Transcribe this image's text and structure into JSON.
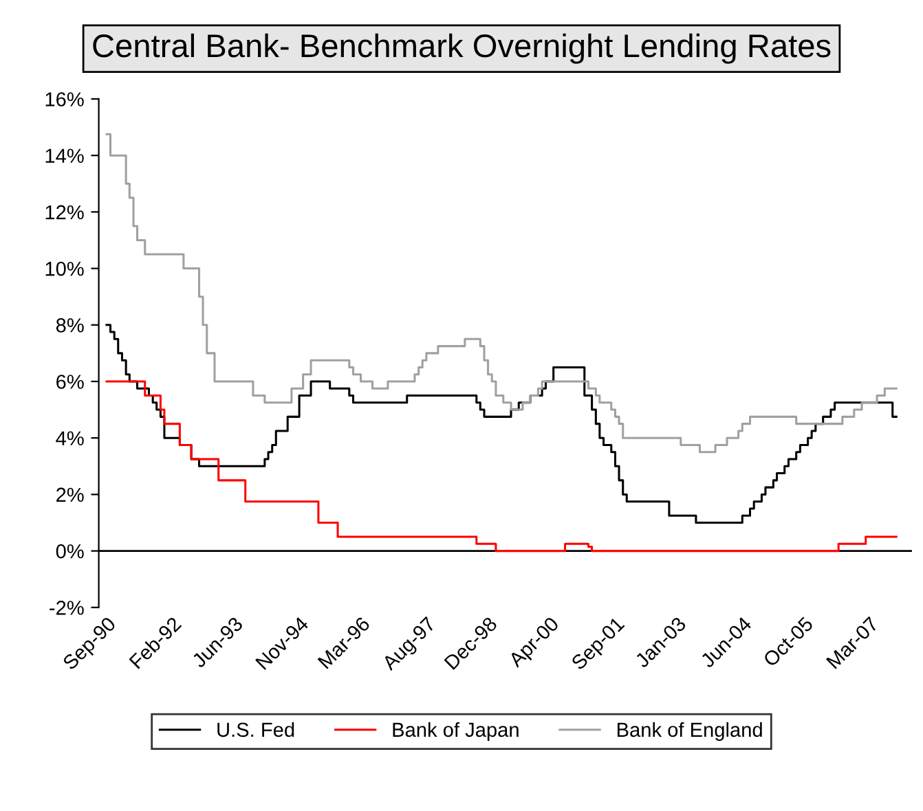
{
  "chart_data": {
    "type": "step",
    "title": "Central Bank- Benchmark Overnight Lending Rates",
    "series": [
      {
        "name": "U.S. Fed",
        "color": "#000000",
        "x": [
          "1990-09",
          "1990-10",
          "1990-11",
          "1990-12",
          "1991-01",
          "1991-02",
          "1991-03",
          "1991-05",
          "1991-08",
          "1991-09",
          "1991-10",
          "1991-11",
          "1991-12",
          "1992-04",
          "1992-07",
          "1992-09",
          "1994-02",
          "1994-03",
          "1994-04",
          "1994-05",
          "1994-08",
          "1994-11",
          "1995-02",
          "1995-07",
          "1995-12",
          "1996-01",
          "1997-03",
          "1998-09",
          "1998-10",
          "1998-11",
          "1999-06",
          "1999-08",
          "1999-11",
          "2000-02",
          "2000-03",
          "2000-05",
          "2001-01",
          "2001-03",
          "2001-04",
          "2001-05",
          "2001-06",
          "2001-08",
          "2001-09",
          "2001-10",
          "2001-11",
          "2001-12",
          "2002-11",
          "2003-06",
          "2004-06",
          "2004-08",
          "2004-09",
          "2004-11",
          "2004-12",
          "2005-02",
          "2005-03",
          "2005-05",
          "2005-06",
          "2005-08",
          "2005-09",
          "2005-11",
          "2005-12",
          "2006-01",
          "2006-03",
          "2006-05",
          "2006-06",
          "2007-09",
          "2007-10"
        ],
        "values": [
          8.0,
          7.75,
          7.5,
          7.0,
          6.75,
          6.25,
          6.0,
          5.75,
          5.5,
          5.25,
          5.0,
          4.75,
          4.0,
          3.75,
          3.25,
          3.0,
          3.25,
          3.5,
          3.75,
          4.25,
          4.75,
          5.5,
          6.0,
          5.75,
          5.5,
          5.25,
          5.5,
          5.25,
          5.0,
          4.75,
          5.0,
          5.25,
          5.5,
          5.75,
          6.0,
          6.5,
          5.5,
          5.0,
          4.5,
          4.0,
          3.75,
          3.5,
          3.0,
          2.5,
          2.0,
          1.75,
          1.25,
          1.0,
          1.25,
          1.5,
          1.75,
          2.0,
          2.25,
          2.5,
          2.75,
          3.0,
          3.25,
          3.5,
          3.75,
          4.0,
          4.25,
          4.5,
          4.75,
          5.0,
          5.25,
          4.75,
          4.75
        ]
      },
      {
        "name": "Bank of Japan",
        "color": "#ff0000",
        "x": [
          "1990-09",
          "1991-07",
          "1991-11",
          "1991-12",
          "1992-04",
          "1992-07",
          "1993-02",
          "1993-09",
          "1995-04",
          "1995-09",
          "1998-09",
          "1999-02",
          "2000-08",
          "2001-02",
          "2001-03",
          "2006-07",
          "2007-02",
          "2007-10"
        ],
        "values": [
          6.0,
          5.5,
          5.0,
          4.5,
          3.75,
          3.25,
          2.5,
          1.75,
          1.0,
          0.5,
          0.25,
          0.0,
          0.25,
          0.15,
          0.0,
          0.25,
          0.5,
          0.5
        ]
      },
      {
        "name": "Bank of England",
        "color": "#a0a0a0",
        "x": [
          "1990-09",
          "1990-10",
          "1991-02",
          "1991-03",
          "1991-04",
          "1991-05",
          "1991-07",
          "1992-05",
          "1992-09",
          "1992-10",
          "1992-11",
          "1993-01",
          "1993-11",
          "1994-02",
          "1994-09",
          "1994-12",
          "1995-02",
          "1995-12",
          "1996-01",
          "1996-03",
          "1996-06",
          "1996-10",
          "1997-05",
          "1997-06",
          "1997-07",
          "1997-08",
          "1997-11",
          "1998-06",
          "1998-10",
          "1998-11",
          "1998-12",
          "1999-01",
          "1999-02",
          "1999-04",
          "1999-06",
          "1999-09",
          "1999-11",
          "2000-01",
          "2000-02",
          "2001-02",
          "2001-04",
          "2001-05",
          "2001-08",
          "2001-09",
          "2001-10",
          "2001-11",
          "2003-02",
          "2003-07",
          "2003-11",
          "2004-02",
          "2004-05",
          "2004-06",
          "2004-08",
          "2005-08",
          "2006-08",
          "2006-11",
          "2007-01",
          "2007-05",
          "2007-07",
          "2007-10"
        ],
        "values": [
          14.75,
          14.0,
          13.0,
          12.5,
          11.5,
          11.0,
          10.5,
          10.0,
          9.0,
          8.0,
          7.0,
          6.0,
          5.5,
          5.25,
          5.75,
          6.25,
          6.75,
          6.5,
          6.25,
          6.0,
          5.75,
          6.0,
          6.25,
          6.5,
          6.75,
          7.0,
          7.25,
          7.5,
          7.25,
          6.75,
          6.25,
          6.0,
          5.5,
          5.25,
          5.0,
          5.25,
          5.5,
          5.75,
          6.0,
          5.75,
          5.5,
          5.25,
          5.0,
          4.75,
          4.5,
          4.0,
          3.75,
          3.5,
          3.75,
          4.0,
          4.25,
          4.5,
          4.75,
          4.5,
          4.75,
          5.0,
          5.25,
          5.5,
          5.75,
          5.75
        ]
      }
    ],
    "xlim": [
      "1990-07",
      "2008-02"
    ],
    "xticks": [
      {
        "value": "1990-09",
        "label": "Sep-90"
      },
      {
        "value": "1992-02",
        "label": "Feb-92"
      },
      {
        "value": "1993-06",
        "label": "Jun-93"
      },
      {
        "value": "1994-11",
        "label": "Nov-94"
      },
      {
        "value": "1996-03",
        "label": "Mar-96"
      },
      {
        "value": "1997-08",
        "label": "Aug-97"
      },
      {
        "value": "1998-12",
        "label": "Dec-98"
      },
      {
        "value": "2000-04",
        "label": "Apr-00"
      },
      {
        "value": "2001-09",
        "label": "Sep-01"
      },
      {
        "value": "2003-01",
        "label": "Jan-03"
      },
      {
        "value": "2004-06",
        "label": "Jun-04"
      },
      {
        "value": "2005-10",
        "label": "Oct-05"
      },
      {
        "value": "2007-03",
        "label": "Mar-07"
      }
    ],
    "ylim": [
      -2,
      16
    ],
    "yticks": [
      {
        "value": -2,
        "label": "-2%"
      },
      {
        "value": 0,
        "label": "0%"
      },
      {
        "value": 2,
        "label": "2%"
      },
      {
        "value": 4,
        "label": "4%"
      },
      {
        "value": 6,
        "label": "6%"
      },
      {
        "value": 8,
        "label": "8%"
      },
      {
        "value": 10,
        "label": "10%"
      },
      {
        "value": 12,
        "label": "12%"
      },
      {
        "value": 14,
        "label": "14%"
      },
      {
        "value": 16,
        "label": "16%"
      }
    ],
    "ref_lines": [
      {
        "axis": "y",
        "value": 0,
        "label": null,
        "color": "#000000"
      }
    ],
    "grid": false,
    "legend": "bottom",
    "line_style": "solid",
    "marker": "none"
  }
}
